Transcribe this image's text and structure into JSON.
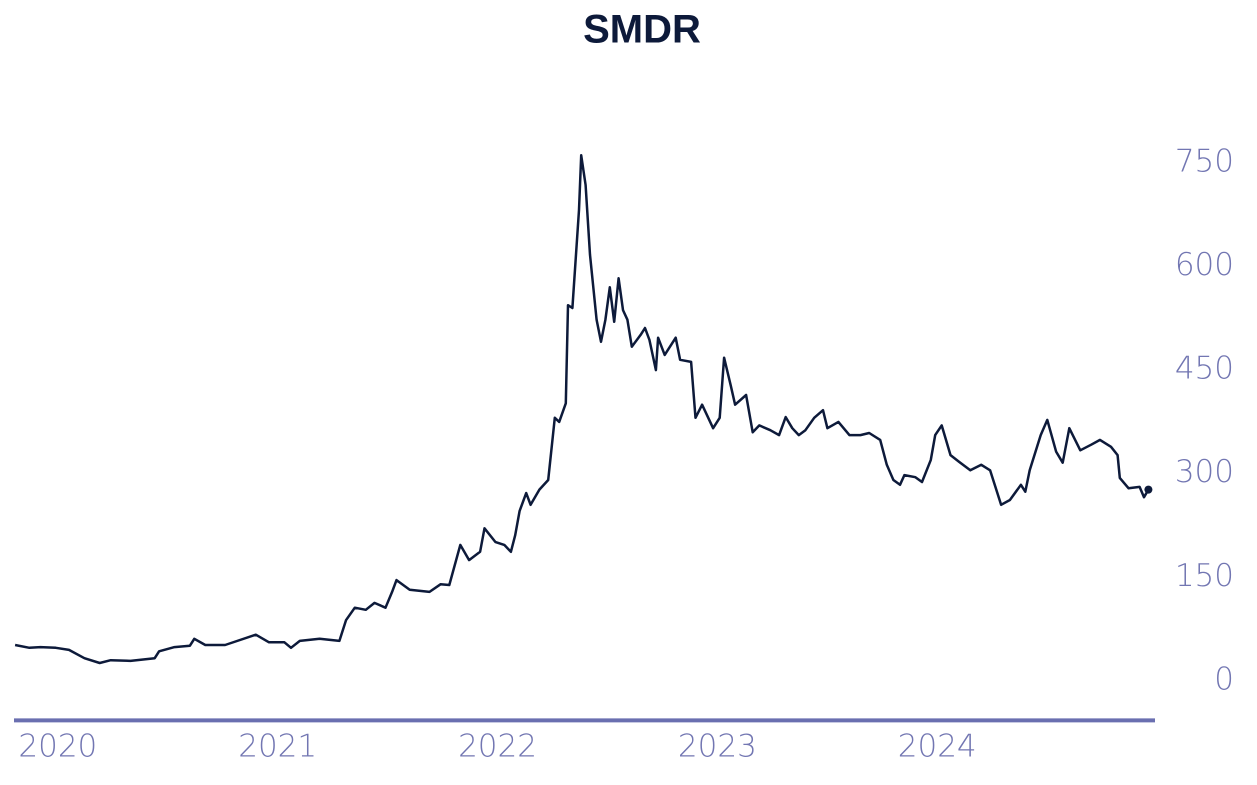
{
  "chart_data": {
    "type": "line",
    "title": "SMDR",
    "x": [
      2019.985,
      2020.05,
      2020.1,
      2020.17,
      2020.23,
      2020.3,
      2020.37,
      2020.42,
      2020.51,
      2020.62,
      2020.64,
      2020.71,
      2020.78,
      2020.8,
      2020.85,
      2020.94,
      2021.08,
      2021.14,
      2021.21,
      2021.24,
      2021.28,
      2021.37,
      2021.46,
      2021.49,
      2021.53,
      2021.58,
      2021.62,
      2021.67,
      2021.7,
      2021.72,
      2021.78,
      2021.87,
      2021.92,
      2021.96,
      2022.01,
      2022.05,
      2022.1,
      2022.12,
      2022.17,
      2022.21,
      2022.24,
      2022.26,
      2022.28,
      2022.31,
      2022.33,
      2022.37,
      2022.41,
      2022.44,
      2022.46,
      2022.49,
      2022.5,
      2022.52,
      2022.55,
      2022.56,
      2022.58,
      2022.6,
      2022.63,
      2022.65,
      2022.67,
      2022.69,
      2022.71,
      2022.73,
      2022.75,
      2022.77,
      2022.79,
      2022.83,
      2022.85,
      2022.87,
      2022.9,
      2022.91,
      2022.94,
      2022.99,
      2023.01,
      2023.06,
      2023.08,
      2023.11,
      2023.16,
      2023.19,
      2023.21,
      2023.24,
      2023.26,
      2023.31,
      2023.34,
      2023.37,
      2023.42,
      2023.46,
      2023.49,
      2023.52,
      2023.55,
      2023.58,
      2023.62,
      2023.66,
      2023.68,
      2023.73,
      2023.78,
      2023.83,
      2023.87,
      2023.92,
      2023.95,
      2023.98,
      2024.01,
      2024.03,
      2024.08,
      2024.11,
      2024.15,
      2024.17,
      2024.2,
      2024.24,
      2024.28,
      2024.33,
      2024.38,
      2024.42,
      2024.47,
      2024.51,
      2024.56,
      2024.58,
      2024.6,
      2024.65,
      2024.68,
      2024.72,
      2024.75,
      2024.78,
      2024.83,
      2024.88,
      2024.92,
      2024.97,
      2025.0,
      2025.01,
      2025.05,
      2025.1,
      2025.12,
      2025.14
    ],
    "series": [
      {
        "name": "SMDR",
        "color": "#0d1a3a",
        "values": [
          52,
          48,
          49,
          48,
          45,
          33,
          26,
          30,
          29,
          33,
          43,
          49,
          51,
          61,
          52,
          52,
          67,
          56,
          56,
          48,
          58,
          61,
          58,
          88,
          106,
          103,
          113,
          106,
          129,
          146,
          132,
          129,
          140,
          139,
          197,
          175,
          187,
          221,
          201,
          197,
          187,
          211,
          246,
          272,
          255,
          277,
          291,
          381,
          375,
          402,
          544,
          540,
          682,
          761,
          718,
          617,
          523,
          491,
          523,
          570,
          520,
          583,
          537,
          523,
          484,
          501,
          511,
          494,
          450,
          497,
          472,
          497,
          465,
          462,
          381,
          400,
          366,
          381,
          468,
          428,
          400,
          414,
          360,
          370,
          363,
          356,
          382,
          366,
          356,
          363,
          381,
          392,
          366,
          375,
          356,
          356,
          359,
          349,
          313,
          291,
          284,
          298,
          295,
          288,
          320,
          356,
          370,
          327,
          317,
          305,
          313,
          305,
          255,
          262,
          284,
          274,
          305,
          356,
          378,
          332,
          316,
          366,
          334,
          342,
          349,
          339,
          327,
          294,
          279,
          281,
          266,
          277
        ]
      }
    ],
    "xlim": [
      2019.98,
      2025.17
    ],
    "xticks": [
      2020,
      2021,
      2022,
      2023,
      2024
    ],
    "ylim": [
      -60,
      800
    ],
    "yticks": [
      0,
      150,
      300,
      450,
      600,
      750
    ]
  }
}
